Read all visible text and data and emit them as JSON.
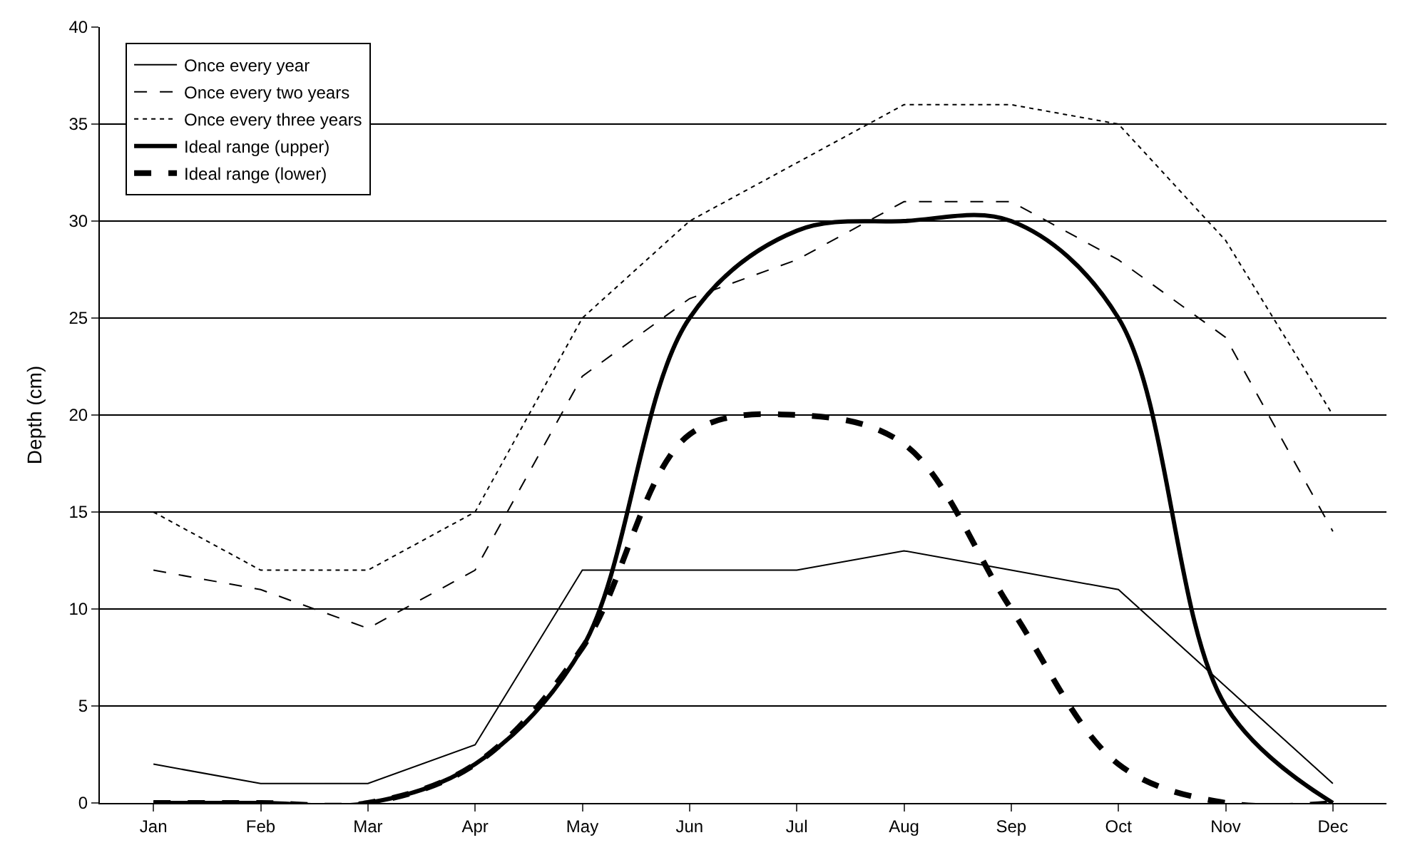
{
  "chart_data": {
    "type": "line",
    "ylabel": "Depth (cm)",
    "categories": [
      "Jan",
      "Feb",
      "Mar",
      "Apr",
      "May",
      "Jun",
      "Jul",
      "Aug",
      "Sep",
      "Oct",
      "Nov",
      "Dec"
    ],
    "series": [
      {
        "name": "Once every year",
        "color": "#000000",
        "line_style": "solid",
        "values": [
          2,
          1,
          1,
          3,
          12,
          12,
          12,
          13,
          12,
          11,
          6,
          1
        ]
      },
      {
        "name": "Once every two years",
        "color": "#000000",
        "line_style": "dashed",
        "values": [
          12,
          11,
          9,
          12,
          22,
          26,
          28,
          31,
          31,
          28,
          24,
          14
        ]
      },
      {
        "name": "Once every three years",
        "color": "#000000",
        "line_style": "dotted",
        "values": [
          15,
          12,
          12,
          15,
          25,
          30,
          33,
          36,
          36,
          35,
          29,
          20
        ]
      },
      {
        "name": "Ideal range (upper)",
        "color": "#000000",
        "line_style": "solid",
        "values": [
          0,
          0,
          0,
          2,
          8,
          25,
          29.5,
          30,
          30,
          25,
          5,
          0
        ]
      },
      {
        "name": "Ideal range (lower)",
        "color": "#000000",
        "line_style": "dashed",
        "values": [
          0,
          0,
          0,
          2,
          8,
          19,
          20,
          18.5,
          10,
          2,
          0,
          0
        ]
      }
    ],
    "ylim": [
      0,
      40
    ],
    "yticks": [
      0,
      5,
      10,
      15,
      20,
      25,
      30,
      35,
      40
    ],
    "grid": "y",
    "legend": "top left",
    "marker": "none"
  }
}
